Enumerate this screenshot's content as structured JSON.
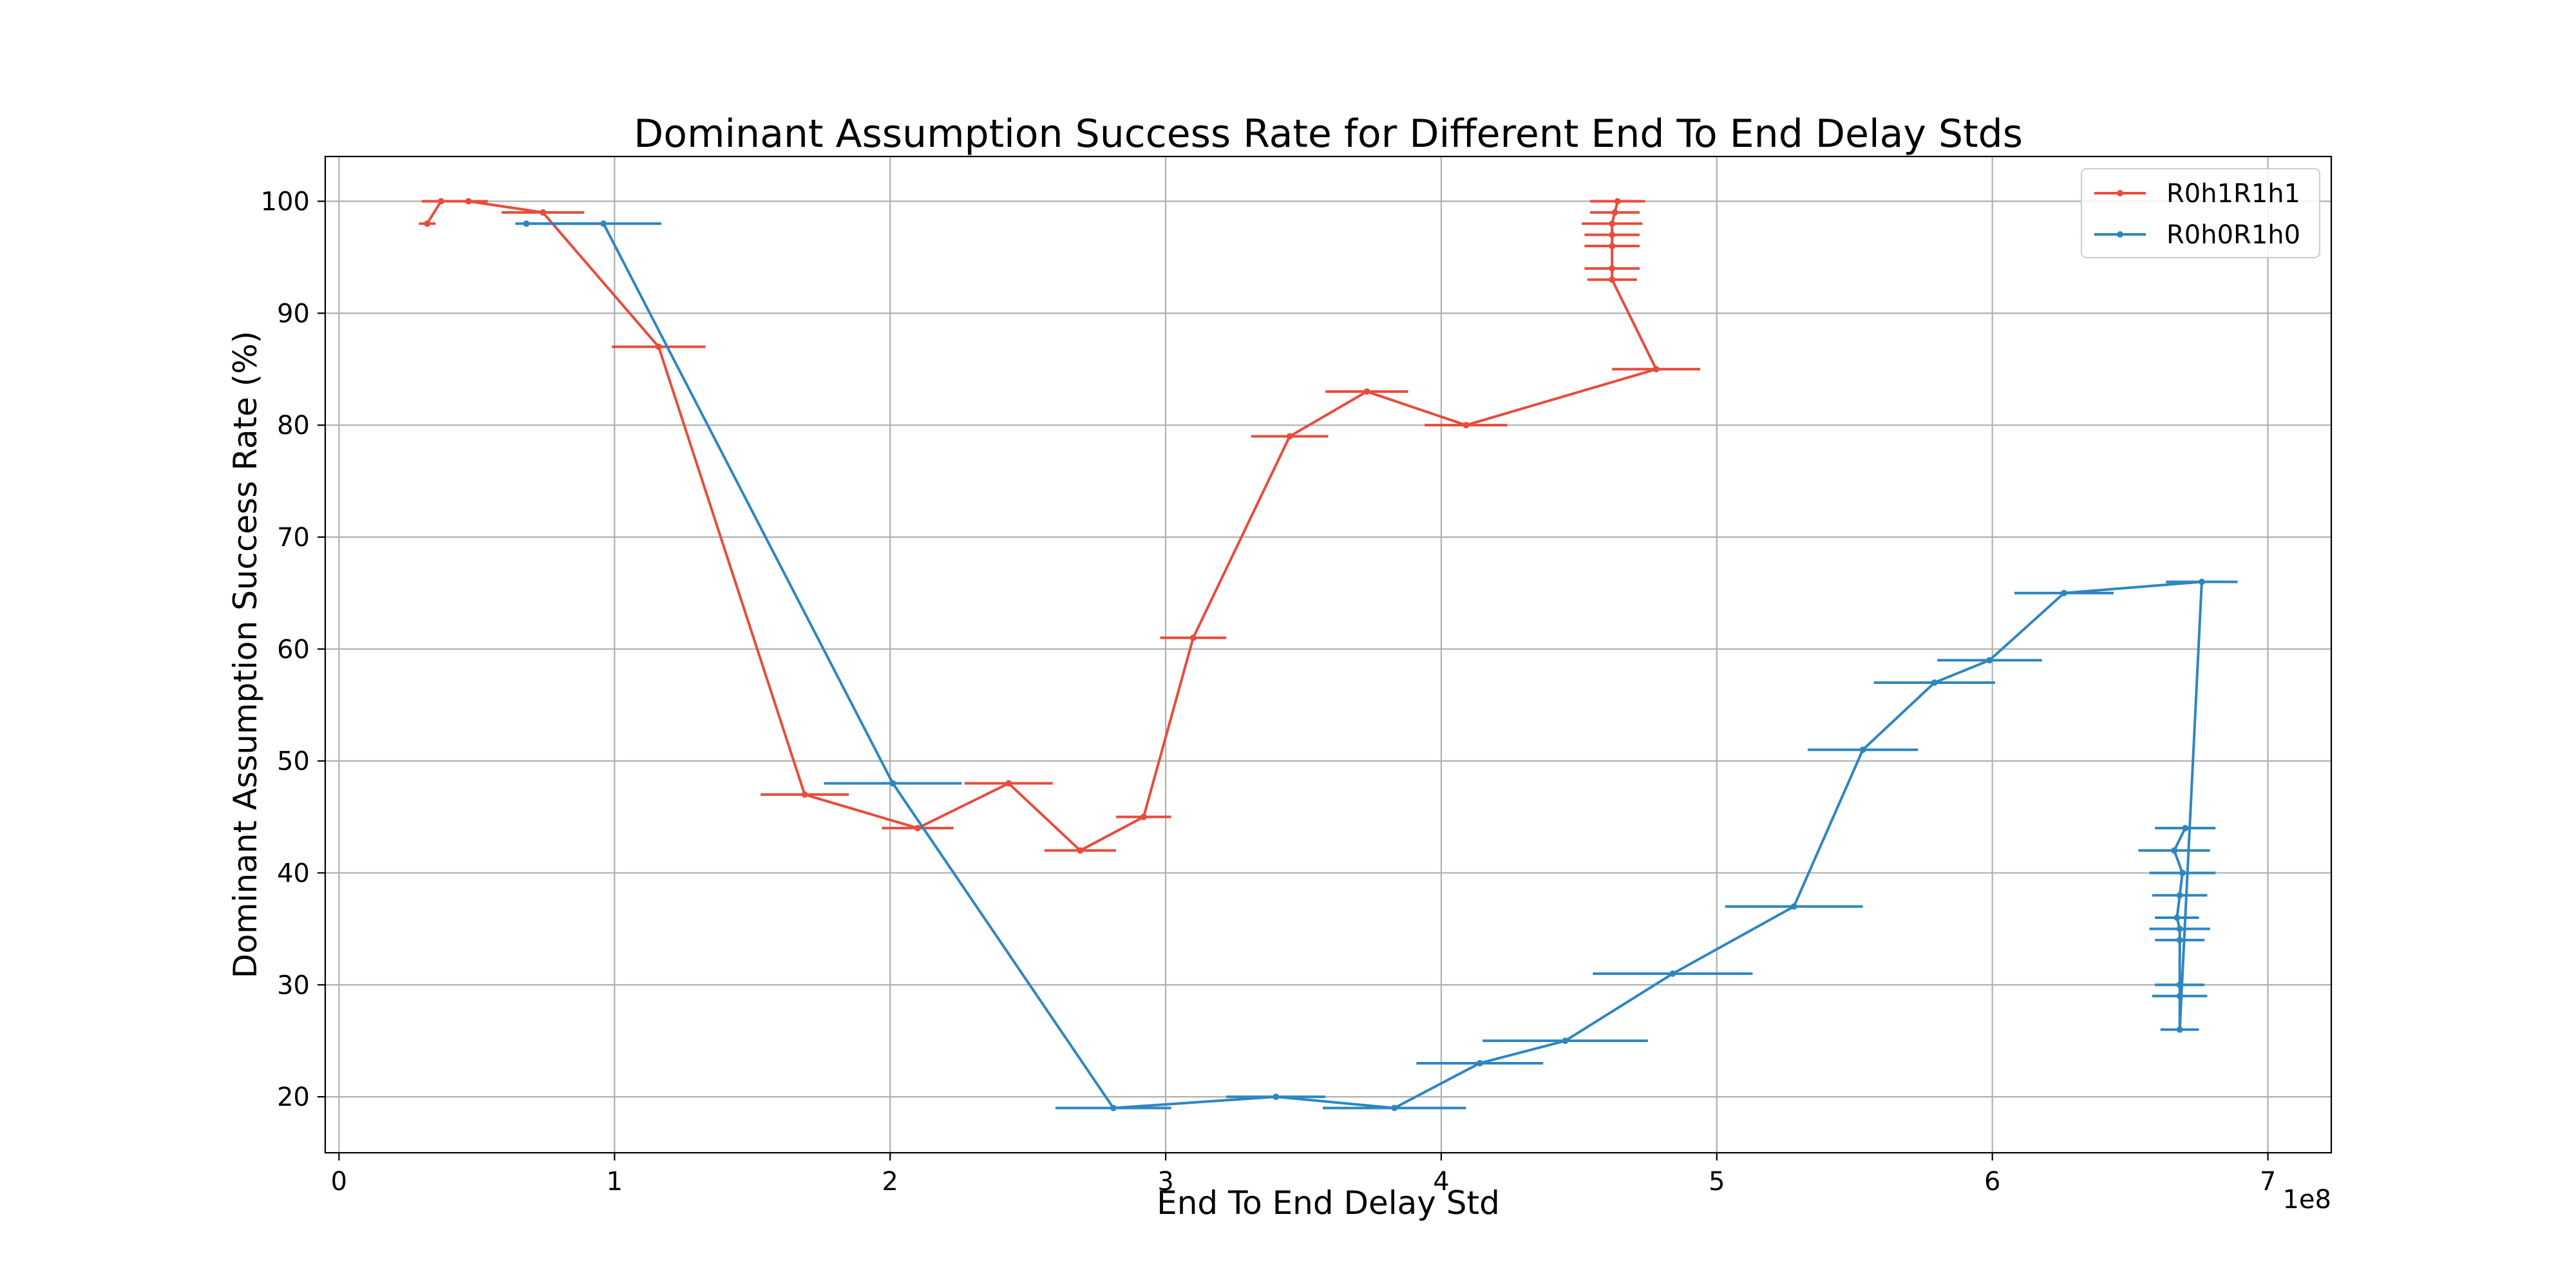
{
  "chart_data": {
    "type": "line",
    "title": "Dominant Assumption Success Rate for Different End To End Delay Stds",
    "xlabel": "End To End Delay Std",
    "ylabel": "Dominant Assumption Success Rate (%)",
    "x_scale_label": "1e8",
    "x_scale": 100000000,
    "xlim": [
      -0.05,
      7.23
    ],
    "ylim": [
      15,
      104
    ],
    "x_ticks": [
      0,
      1,
      2,
      3,
      4,
      5,
      6,
      7
    ],
    "x_tick_labels": [
      "0",
      "1",
      "2",
      "3",
      "4",
      "5",
      "6",
      "7"
    ],
    "y_ticks": [
      20,
      30,
      40,
      50,
      60,
      70,
      80,
      90,
      100
    ],
    "y_tick_labels": [
      "20",
      "30",
      "40",
      "50",
      "60",
      "70",
      "80",
      "90",
      "100"
    ],
    "grid": true,
    "legend_position": "top-right",
    "series": [
      {
        "name": "R0h1R1h1",
        "color": "#e74c3c",
        "points": [
          {
            "x": 0.32,
            "y": 98,
            "xerr": 0.03
          },
          {
            "x": 0.37,
            "y": 100,
            "xerr": 0.07
          },
          {
            "x": 0.47,
            "y": 100,
            "xerr": 0.07
          },
          {
            "x": 0.74,
            "y": 99,
            "xerr": 0.15
          },
          {
            "x": 1.16,
            "y": 87,
            "xerr": 0.17
          },
          {
            "x": 1.69,
            "y": 47,
            "xerr": 0.16
          },
          {
            "x": 2.1,
            "y": 44,
            "xerr": 0.13
          },
          {
            "x": 2.43,
            "y": 48,
            "xerr": 0.16
          },
          {
            "x": 2.69,
            "y": 42,
            "xerr": 0.13
          },
          {
            "x": 2.92,
            "y": 45,
            "xerr": 0.1
          },
          {
            "x": 3.1,
            "y": 61,
            "xerr": 0.12
          },
          {
            "x": 3.45,
            "y": 79,
            "xerr": 0.14
          },
          {
            "x": 3.73,
            "y": 83,
            "xerr": 0.15
          },
          {
            "x": 4.09,
            "y": 80,
            "xerr": 0.15
          },
          {
            "x": 4.78,
            "y": 85,
            "xerr": 0.16
          },
          {
            "x": 4.62,
            "y": 93,
            "xerr": 0.09
          },
          {
            "x": 4.62,
            "y": 94,
            "xerr": 0.1
          },
          {
            "x": 4.62,
            "y": 96,
            "xerr": 0.1
          },
          {
            "x": 4.62,
            "y": 97,
            "xerr": 0.1
          },
          {
            "x": 4.62,
            "y": 98,
            "xerr": 0.11
          },
          {
            "x": 4.63,
            "y": 99,
            "xerr": 0.09
          },
          {
            "x": 4.64,
            "y": 100,
            "xerr": 0.1
          }
        ]
      },
      {
        "name": "R0h0R1h0",
        "color": "#2e86c1",
        "points": [
          {
            "x": 0.68,
            "y": 98,
            "xerr": 0.04
          },
          {
            "x": 0.96,
            "y": 98,
            "xerr": 0.21
          },
          {
            "x": 2.01,
            "y": 48,
            "xerr": 0.25
          },
          {
            "x": 2.81,
            "y": 19,
            "xerr": 0.21
          },
          {
            "x": 3.4,
            "y": 20,
            "xerr": 0.18
          },
          {
            "x": 3.83,
            "y": 19,
            "xerr": 0.26
          },
          {
            "x": 4.14,
            "y": 23,
            "xerr": 0.23
          },
          {
            "x": 4.45,
            "y": 25,
            "xerr": 0.3
          },
          {
            "x": 4.84,
            "y": 31,
            "xerr": 0.29
          },
          {
            "x": 5.28,
            "y": 37,
            "xerr": 0.25
          },
          {
            "x": 5.53,
            "y": 51,
            "xerr": 0.2
          },
          {
            "x": 5.79,
            "y": 57,
            "xerr": 0.22
          },
          {
            "x": 5.99,
            "y": 59,
            "xerr": 0.19
          },
          {
            "x": 6.26,
            "y": 65,
            "xerr": 0.18
          },
          {
            "x": 6.76,
            "y": 66,
            "xerr": 0.13
          },
          {
            "x": 6.68,
            "y": 26,
            "xerr": 0.07
          },
          {
            "x": 6.68,
            "y": 29,
            "xerr": 0.1
          },
          {
            "x": 6.68,
            "y": 30,
            "xerr": 0.09
          },
          {
            "x": 6.68,
            "y": 34,
            "xerr": 0.09
          },
          {
            "x": 6.68,
            "y": 35,
            "xerr": 0.11
          },
          {
            "x": 6.67,
            "y": 36,
            "xerr": 0.08
          },
          {
            "x": 6.68,
            "y": 38,
            "xerr": 0.1
          },
          {
            "x": 6.69,
            "y": 40,
            "xerr": 0.12
          },
          {
            "x": 6.66,
            "y": 42,
            "xerr": 0.13
          },
          {
            "x": 6.7,
            "y": 44,
            "xerr": 0.11
          }
        ]
      }
    ]
  }
}
